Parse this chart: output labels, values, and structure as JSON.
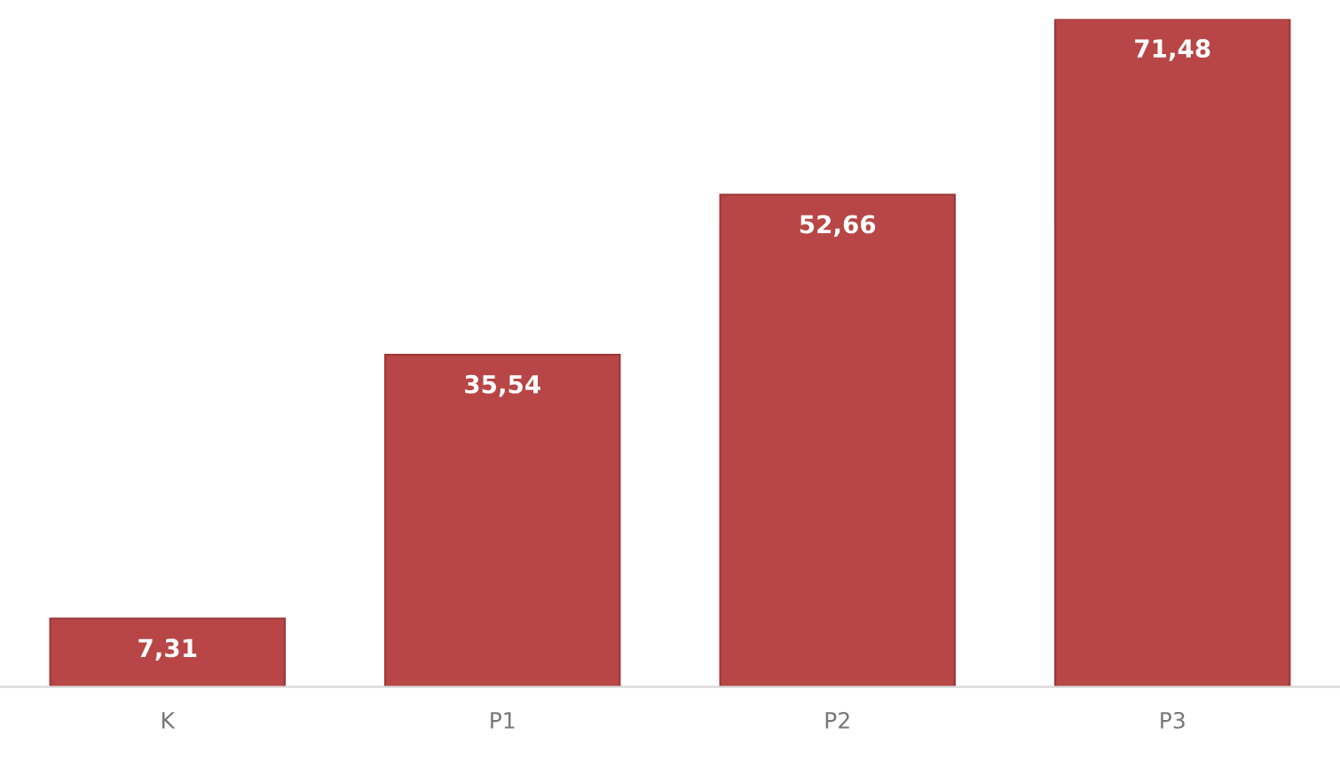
{
  "chart_data": {
    "type": "bar",
    "categories": [
      "K",
      "P1",
      "P2",
      "P3"
    ],
    "values": [
      7.31,
      35.54,
      52.66,
      71.48
    ],
    "value_labels": [
      "7,31",
      "35,54",
      "52,66",
      "71,48"
    ],
    "color": "#b84646",
    "grid": false,
    "legend": false
  }
}
